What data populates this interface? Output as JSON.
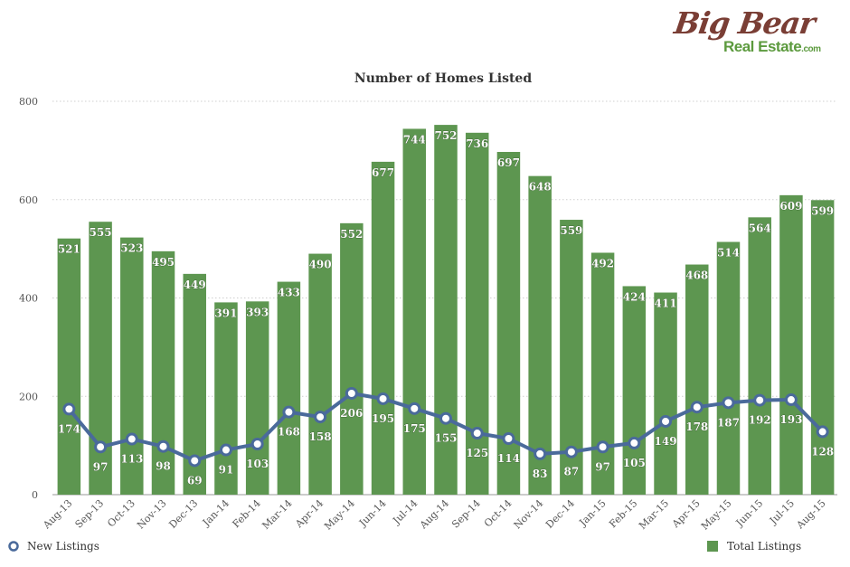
{
  "logo": {
    "line1": "Big Bear",
    "line2": "Real Estate",
    "suffix": ".com"
  },
  "chart_data": {
    "type": "bar",
    "title": "Number of Homes Listed",
    "categories": [
      "Aug-13",
      "Sep-13",
      "Oct-13",
      "Nov-13",
      "Dec-13",
      "Jan-14",
      "Feb-14",
      "Mar-14",
      "Apr-14",
      "May-14",
      "Jun-14",
      "Jul-14",
      "Aug-14",
      "Sep-14",
      "Oct-14",
      "Nov-14",
      "Dec-14",
      "Jan-15",
      "Feb-15",
      "Mar-15",
      "Apr-15",
      "May-15",
      "Jun-15",
      "Jul-15",
      "Aug-15"
    ],
    "series": [
      {
        "name": "Total Listings",
        "type": "bar",
        "color": "#5d9650",
        "values": [
          521,
          555,
          523,
          495,
          449,
          391,
          393,
          433,
          490,
          552,
          677,
          744,
          752,
          736,
          697,
          648,
          559,
          492,
          424,
          411,
          468,
          514,
          564,
          609,
          599
        ]
      },
      {
        "name": "New Listings",
        "type": "line",
        "color": "#4a6a9b",
        "values": [
          174,
          97,
          113,
          98,
          69,
          91,
          103,
          168,
          158,
          206,
          195,
          175,
          155,
          125,
          114,
          83,
          87,
          97,
          105,
          149,
          178,
          187,
          192,
          193,
          128
        ]
      }
    ],
    "ylim": [
      0,
      800
    ],
    "yticks": [
      0,
      200,
      400,
      600,
      800
    ],
    "grid": true,
    "legend_position": "bottom"
  }
}
